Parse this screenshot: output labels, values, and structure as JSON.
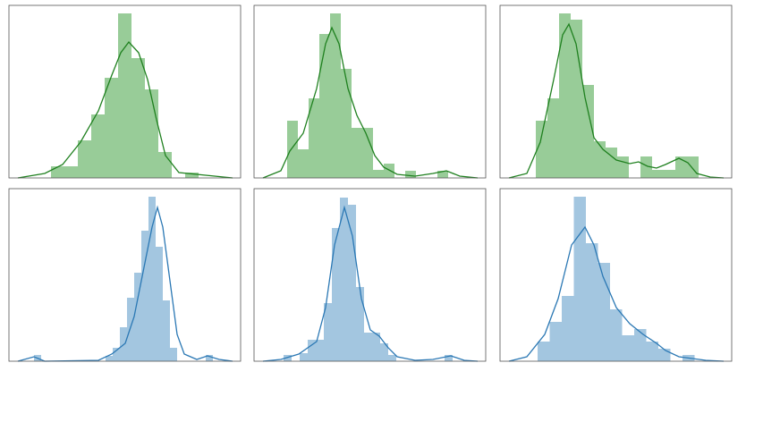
{
  "chart_data": [
    {
      "type": "histogram",
      "color": "#98cc98",
      "line_color": "#1f801f",
      "xlim": [
        0,
        259
      ],
      "ylim": [
        0,
        193
      ],
      "bins": [
        47,
        62,
        77,
        92,
        107,
        122,
        137,
        152,
        167,
        182,
        197,
        212
      ],
      "values": [
        13,
        13,
        42,
        71,
        112,
        184,
        134,
        99,
        29,
        0,
        6
      ],
      "kde": {
        "x": [
          10,
          40,
          60,
          80,
          100,
          115,
          125,
          134,
          145,
          155,
          165,
          175,
          190,
          210,
          230,
          250
        ],
        "y": [
          0,
          5,
          15,
          40,
          75,
          115,
          140,
          152,
          140,
          110,
          65,
          25,
          6,
          4,
          2,
          0
        ]
      }
    },
    {
      "type": "histogram",
      "color": "#98cc98",
      "line_color": "#1f801f",
      "xlim": [
        0,
        259
      ],
      "ylim": [
        0,
        193
      ],
      "bins": [
        37,
        49,
        61,
        73,
        85,
        97,
        109,
        121,
        133,
        145,
        157,
        169,
        181,
        193,
        205,
        217
      ],
      "values": [
        64,
        32,
        89,
        161,
        184,
        122,
        56,
        56,
        9,
        16,
        0,
        8,
        0,
        0,
        8
      ],
      "kde": {
        "x": [
          10,
          30,
          40,
          55,
          70,
          80,
          87,
          95,
          105,
          115,
          125,
          135,
          145,
          160,
          180,
          200,
          215,
          230,
          250
        ],
        "y": [
          0,
          8,
          30,
          50,
          100,
          150,
          168,
          150,
          100,
          70,
          50,
          25,
          12,
          4,
          2,
          5,
          8,
          2,
          0
        ]
      }
    },
    {
      "type": "histogram",
      "color": "#98cc98",
      "line_color": "#1f801f",
      "xlim": [
        0,
        259
      ],
      "ylim": [
        0,
        193
      ],
      "bins": [
        40,
        53,
        66,
        79,
        92,
        105,
        118,
        131,
        144,
        157,
        170,
        183,
        196,
        209,
        222
      ],
      "values": [
        64,
        89,
        184,
        177,
        104,
        41,
        34,
        24,
        0,
        24,
        9,
        9,
        24,
        24
      ],
      "kde": {
        "x": [
          10,
          30,
          45,
          60,
          70,
          77,
          85,
          95,
          105,
          115,
          130,
          145,
          155,
          165,
          175,
          185,
          200,
          210,
          220,
          235,
          250
        ],
        "y": [
          0,
          5,
          40,
          110,
          160,
          172,
          150,
          90,
          45,
          32,
          20,
          16,
          18,
          13,
          11,
          15,
          22,
          17,
          5,
          1,
          0
        ]
      }
    },
    {
      "type": "histogram",
      "color": "#a3c6e0",
      "line_color": "#2b78b4",
      "xlim": [
        0,
        259
      ],
      "ylim": [
        0,
        193
      ],
      "bins": [
        28,
        36,
        44,
        52,
        60,
        68,
        76,
        84,
        92,
        100,
        108,
        116,
        124,
        132,
        140,
        148,
        156,
        164,
        172,
        180,
        188,
        196,
        204,
        212,
        220,
        228
      ],
      "values": [
        7,
        0,
        0,
        0,
        0,
        0,
        0,
        0,
        0,
        0,
        6,
        15,
        38,
        71,
        99,
        146,
        184,
        128,
        68,
        15,
        0,
        0,
        0,
        0,
        7
      ],
      "kde": {
        "x": [
          10,
          28,
          40,
          100,
          115,
          130,
          140,
          150,
          160,
          166,
          172,
          180,
          188,
          196,
          210,
          222,
          235,
          250
        ],
        "y": [
          0,
          5,
          0,
          1,
          8,
          20,
          50,
          100,
          150,
          172,
          150,
          90,
          30,
          8,
          2,
          6,
          2,
          0
        ]
      }
    },
    {
      "type": "histogram",
      "color": "#a3c6e0",
      "line_color": "#2b78b4",
      "xlim": [
        0,
        259
      ],
      "ylim": [
        0,
        193
      ],
      "bins": [
        33,
        42,
        51,
        60,
        69,
        78,
        87,
        96,
        105,
        114,
        123,
        132,
        141,
        150,
        159,
        168,
        177,
        186,
        195,
        204,
        213,
        222
      ],
      "values": [
        7,
        0,
        9,
        24,
        24,
        65,
        149,
        183,
        175,
        83,
        32,
        32,
        20,
        7,
        0,
        0,
        0,
        0,
        0,
        0,
        7
      ],
      "kde": {
        "x": [
          10,
          30,
          50,
          70,
          80,
          90,
          101,
          110,
          120,
          130,
          140,
          150,
          160,
          180,
          200,
          220,
          235,
          250
        ],
        "y": [
          0,
          2,
          8,
          22,
          60,
          130,
          172,
          140,
          70,
          35,
          28,
          15,
          5,
          1,
          2,
          6,
          1,
          0
        ]
      }
    },
    {
      "type": "histogram",
      "color": "#a3c6e0",
      "line_color": "#2b78b4",
      "xlim": [
        0,
        259
      ],
      "ylim": [
        0,
        193
      ],
      "bins": [
        42,
        55.5,
        69,
        82.5,
        96,
        109.5,
        123,
        136.5,
        150,
        163.5,
        177,
        190.5,
        204,
        217.5
      ],
      "values": [
        22,
        44,
        73,
        184,
        132,
        110,
        58,
        29,
        36,
        22,
        14,
        0,
        7
      ],
      "kde": {
        "x": [
          10,
          30,
          50,
          65,
          80,
          95,
          105,
          115,
          130,
          145,
          160,
          175,
          185,
          200,
          215,
          230,
          250
        ],
        "y": [
          0,
          5,
          30,
          70,
          130,
          150,
          130,
          95,
          60,
          42,
          30,
          20,
          12,
          5,
          3,
          1,
          0
        ]
      }
    }
  ]
}
